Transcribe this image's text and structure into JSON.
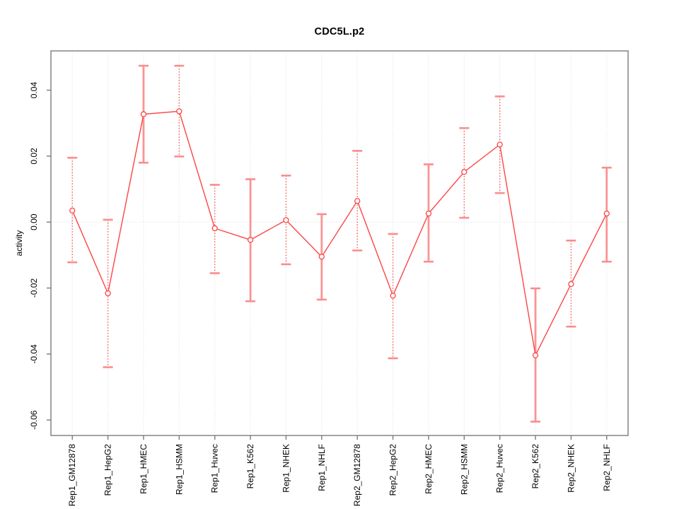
{
  "figure": {
    "title": "CDC5L.p2",
    "ylabel": "activity"
  },
  "chart_data": {
    "type": "line",
    "title": "CDC5L.p2",
    "xlabel": "",
    "ylabel": "activity",
    "ylim": [
      -0.0647,
      0.0519
    ],
    "yticks": [
      0.04,
      0.02,
      0,
      -0.02,
      -0.04,
      -0.06
    ],
    "ytick_labels": [
      "0.04",
      "0.02",
      "0.00",
      "-0.02",
      "-0.04",
      "-0.06"
    ],
    "grid": "vertical dotted gridline at every category; horizontal dotted line at y=0 only",
    "legend_position": "none",
    "marker": "open-circle",
    "categories": [
      "Rep1_GM12878",
      "Rep1_HepG2",
      "Rep1_HMEC",
      "Rep1_HSMM",
      "Rep1_Huvec",
      "Rep1_K562",
      "Rep1_NHEK",
      "Rep1_NHLF",
      "Rep2_GM12878",
      "Rep2_HepG2",
      "Rep2_HMEC",
      "Rep2_HSMM",
      "Rep2_Huvec",
      "Rep2_K562",
      "Rep2_NHEK",
      "Rep2_NHLF"
    ],
    "series": [
      {
        "name": "activity",
        "values": [
          0.0035,
          -0.0216,
          0.0327,
          0.0336,
          -0.0019,
          -0.0054,
          0.0006,
          -0.0105,
          0.0064,
          -0.0223,
          0.0026,
          0.0152,
          0.0235,
          -0.0404,
          -0.0188,
          0.0026
        ],
        "ci_low": [
          -0.0122,
          -0.044,
          0.018,
          0.0199,
          -0.0155,
          -0.024,
          -0.0128,
          -0.0235,
          -0.0086,
          -0.0413,
          -0.012,
          0.0013,
          0.0088,
          -0.0605,
          -0.0317,
          -0.012
        ],
        "ci_high": [
          0.0195,
          0.0007,
          0.0474,
          0.0474,
          0.0113,
          0.013,
          0.0141,
          0.0024,
          0.0216,
          -0.0036,
          0.0175,
          0.0285,
          0.0381,
          -0.0201,
          -0.0056,
          0.0165
        ],
        "bar_styles": [
          "dotted",
          "dotted",
          "solid",
          "dotted",
          "dotted",
          "solid",
          "dotted",
          "solid",
          "dotted",
          "dotted",
          "solid",
          "dotted",
          "dotted",
          "solid",
          "dotted",
          "solid"
        ]
      }
    ],
    "colors": {
      "line": "#fc4545",
      "marker_stroke": "#fc4545",
      "marker_fill": "#ffffff",
      "errorbar_solid": "#fa9494",
      "errorbar_dotted": "#fb5c5c",
      "errorbar_cap": "#fa8d8d",
      "grid": "#d8d8d8",
      "frame": "#8c8c8c",
      "tick": "#7a7a7a",
      "text": "#000000"
    }
  }
}
